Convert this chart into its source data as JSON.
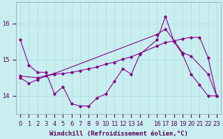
{
  "background_color": "#c8eef0",
  "line_color": "#880088",
  "grid_color": "#aadddd",
  "xlabel": "Windchill (Refroidissement éolien,°C)",
  "xlabel_fontsize": 6.5,
  "tick_fontsize": 6,
  "xlim": [
    -0.5,
    23.5
  ],
  "ylim": [
    13.5,
    16.6
  ],
  "yticks": [
    14,
    15,
    16
  ],
  "xtick_labels": [
    "0",
    "1",
    "2",
    "3",
    "4",
    "5",
    "6",
    "7",
    "8",
    "9",
    "10",
    "11",
    "12",
    "13",
    "14",
    "",
    "16",
    "17",
    "18",
    "19",
    "20",
    "21",
    "22",
    "23"
  ],
  "xtick_pos": [
    0,
    1,
    2,
    3,
    4,
    5,
    6,
    7,
    8,
    9,
    10,
    11,
    12,
    13,
    14,
    15,
    16,
    17,
    18,
    19,
    20,
    21,
    22,
    23
  ],
  "line1_x": [
    0,
    1,
    2,
    3,
    4,
    5,
    6,
    7,
    8,
    9,
    10,
    11,
    12,
    13,
    14,
    16,
    17,
    18,
    19,
    20,
    21,
    22,
    23
  ],
  "line1_y": [
    15.55,
    14.85,
    14.65,
    14.65,
    14.05,
    14.25,
    13.78,
    13.72,
    13.72,
    13.95,
    14.05,
    14.4,
    14.75,
    14.6,
    15.15,
    15.55,
    16.2,
    15.5,
    15.15,
    14.6,
    14.3,
    14.0,
    14.0
  ],
  "line2_x": [
    0,
    2,
    4,
    16,
    17,
    19,
    20,
    22,
    23
  ],
  "line2_y": [
    14.55,
    14.5,
    14.62,
    15.7,
    15.85,
    15.2,
    15.1,
    14.6,
    14.0
  ],
  "line3_x": [
    0,
    1,
    2,
    3,
    4,
    5,
    6,
    7,
    8,
    9,
    10,
    11,
    12,
    13,
    14,
    16,
    17,
    18,
    19,
    20,
    21,
    22,
    23
  ],
  "line3_y": [
    14.5,
    14.35,
    14.45,
    14.55,
    14.6,
    14.62,
    14.65,
    14.7,
    14.75,
    14.8,
    14.88,
    14.93,
    15.02,
    15.08,
    15.18,
    15.38,
    15.48,
    15.52,
    15.58,
    15.62,
    15.62,
    15.05,
    14.0
  ]
}
